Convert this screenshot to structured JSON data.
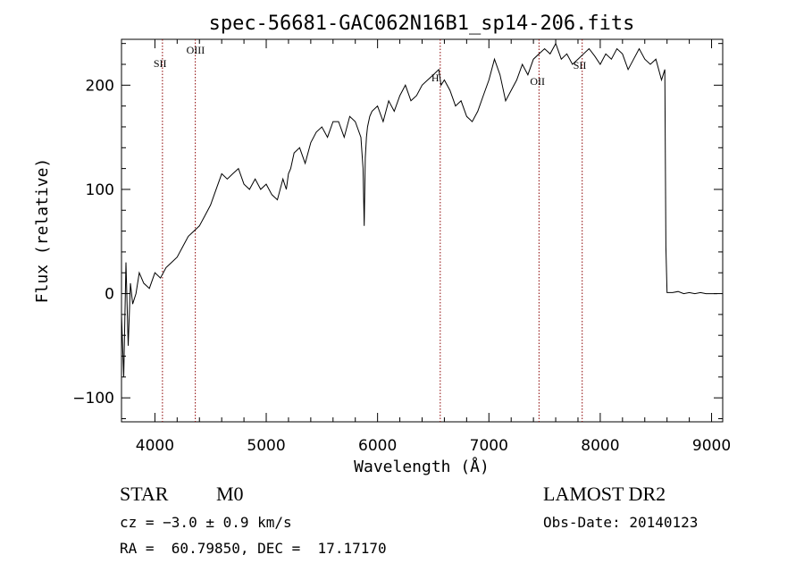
{
  "chart_data": {
    "type": "line",
    "title": "spec-56681-GAC062N16B1_sp14-206.fits",
    "xlabel": "Wavelength (Å)",
    "ylabel": "Flux (relative)",
    "xlim": [
      3700,
      9100
    ],
    "ylim": [
      -123,
      244
    ],
    "x_ticks": [
      4000,
      5000,
      6000,
      7000,
      8000,
      9000
    ],
    "y_ticks": [
      -100,
      0,
      100,
      200
    ],
    "x_tick_labels": [
      "4000",
      "5000",
      "6000",
      "7000",
      "8000",
      "9000"
    ],
    "y_tick_labels": [
      "−100",
      "0",
      "100",
      "200"
    ],
    "grid": false,
    "series": [
      {
        "x": [
          3700,
          3720,
          3740,
          3760,
          3780,
          3800,
          3830,
          3860,
          3900,
          3950,
          4000,
          4050,
          4100,
          4150,
          4200,
          4250,
          4300,
          4350,
          4400,
          4450,
          4500,
          4550,
          4600,
          4650,
          4700,
          4750,
          4800,
          4850,
          4900,
          4950,
          5000,
          5050,
          5100,
          5150,
          5180,
          5200,
          5220,
          5250,
          5300,
          5350,
          5400,
          5450,
          5500,
          5550,
          5600,
          5650,
          5700,
          5750,
          5800,
          5850,
          5870,
          5880,
          5890,
          5900,
          5910,
          5930,
          5950,
          6000,
          6050,
          6100,
          6150,
          6200,
          6250,
          6300,
          6350,
          6400,
          6450,
          6500,
          6550,
          6570,
          6600,
          6650,
          6700,
          6750,
          6800,
          6850,
          6900,
          6950,
          7000,
          7050,
          7100,
          7150,
          7200,
          7250,
          7300,
          7350,
          7400,
          7450,
          7500,
          7550,
          7600,
          7650,
          7700,
          7750,
          7800,
          7850,
          7900,
          7950,
          8000,
          8050,
          8100,
          8150,
          8200,
          8250,
          8300,
          8350,
          8400,
          8450,
          8500,
          8550,
          8580,
          8590,
          8600,
          8610,
          8650,
          8700,
          8750,
          8800,
          8850,
          8900,
          8950,
          9000,
          9050
        ],
        "y": [
          -20,
          -80,
          30,
          -50,
          10,
          -10,
          0,
          20,
          10,
          5,
          20,
          15,
          25,
          30,
          35,
          45,
          55,
          60,
          65,
          75,
          85,
          100,
          115,
          110,
          115,
          120,
          105,
          100,
          110,
          100,
          105,
          95,
          90,
          110,
          100,
          115,
          120,
          135,
          140,
          125,
          145,
          155,
          160,
          150,
          165,
          165,
          150,
          170,
          165,
          150,
          120,
          65,
          130,
          150,
          160,
          170,
          175,
          180,
          165,
          185,
          175,
          190,
          200,
          185,
          190,
          200,
          205,
          210,
          215,
          200,
          205,
          195,
          180,
          185,
          170,
          165,
          175,
          190,
          205,
          225,
          210,
          185,
          195,
          205,
          220,
          210,
          225,
          230,
          235,
          230,
          240,
          225,
          230,
          220,
          225,
          230,
          235,
          228,
          220,
          230,
          225,
          235,
          230,
          215,
          225,
          235,
          225,
          220,
          225,
          205,
          215,
          45,
          1,
          1,
          1,
          2,
          0,
          1,
          0,
          1,
          0,
          0,
          0
        ]
      }
    ],
    "annotations": [
      {
        "label": "SII",
        "x": 4068
      },
      {
        "label": "OIII",
        "x": 4363
      },
      {
        "label": "H",
        "x": 6563
      },
      {
        "label": "OII",
        "x": 7450
      },
      {
        "label": "SII",
        "x": 7838
      }
    ],
    "line_color": "#000000",
    "marker_color": "#8b0000"
  },
  "info": {
    "object_class": "STAR",
    "subclass": "M0",
    "velocity": "cz = −3.0 ± 0.9 km/s",
    "coordinates": "RA =  60.79850, DEC =  17.17170",
    "survey": "LAMOST DR2",
    "obs_date": "Obs-Date: 20140123"
  }
}
